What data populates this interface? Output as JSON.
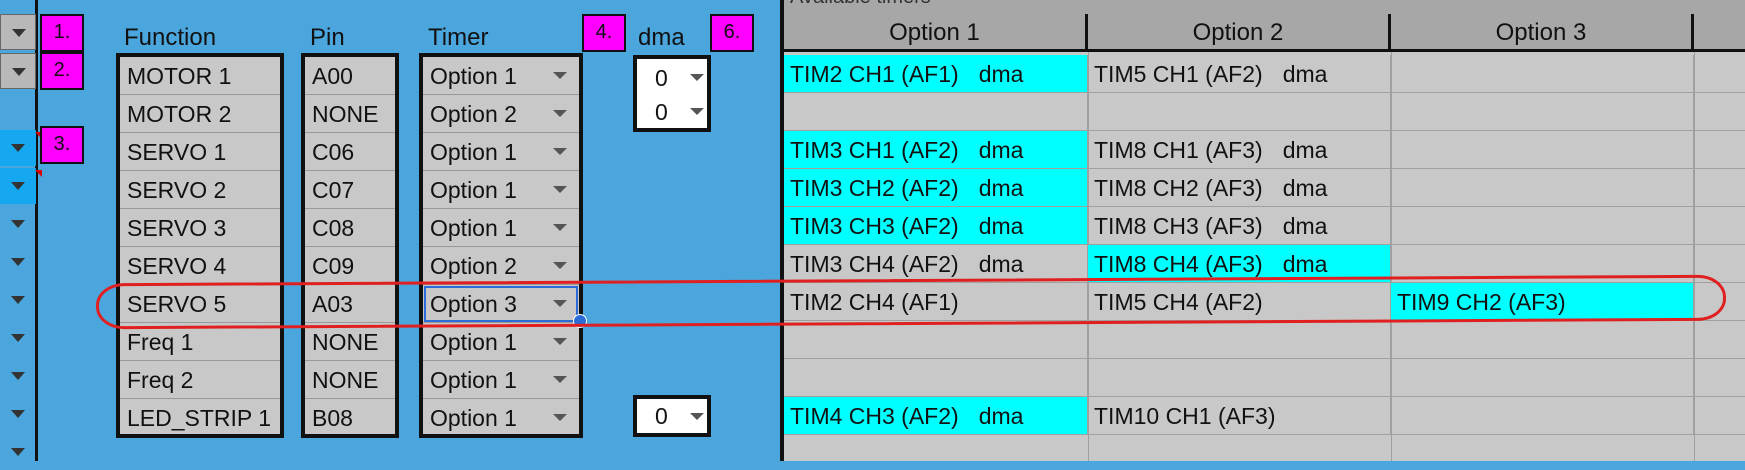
{
  "badges": [
    "1.",
    "2.",
    "3.",
    "4.",
    "6."
  ],
  "headers": {
    "function": "Function",
    "pin": "Pin",
    "timer": "Timer",
    "dma": "dma",
    "available_timers": "Available timers",
    "option1": "Option 1",
    "option2": "Option 2",
    "option3": "Option 3"
  },
  "rows": [
    {
      "function": "MOTOR 1",
      "pin": "A00",
      "timer": "Option 1",
      "dma": "0",
      "opt1": "TIM2 CH1 (AF1)",
      "opt1_dma": "dma",
      "opt1_hl": true,
      "opt2": "TIM5 CH1 (AF2)",
      "opt2_dma": "dma",
      "opt2_hl": false,
      "opt3": "",
      "opt3_hl": false
    },
    {
      "function": "MOTOR 2",
      "pin": "NONE",
      "timer": "Option 2",
      "dma": "0",
      "opt1": "",
      "opt1_dma": "",
      "opt1_hl": false,
      "opt2": "",
      "opt2_dma": "",
      "opt2_hl": false,
      "opt3": "",
      "opt3_hl": false
    },
    {
      "function": "SERVO 1",
      "pin": "C06",
      "timer": "Option 1",
      "dma": "",
      "opt1": "TIM3 CH1 (AF2)",
      "opt1_dma": "dma",
      "opt1_hl": true,
      "opt2": "TIM8 CH1 (AF3)",
      "opt2_dma": "dma",
      "opt2_hl": false,
      "opt3": "",
      "opt3_hl": false
    },
    {
      "function": "SERVO 2",
      "pin": "C07",
      "timer": "Option 1",
      "dma": "",
      "opt1": "TIM3 CH2 (AF2)",
      "opt1_dma": "dma",
      "opt1_hl": true,
      "opt2": "TIM8 CH2 (AF3)",
      "opt2_dma": "dma",
      "opt2_hl": false,
      "opt3": "",
      "opt3_hl": false
    },
    {
      "function": "SERVO 3",
      "pin": "C08",
      "timer": "Option 1",
      "dma": "",
      "opt1": "TIM3 CH3 (AF2)",
      "opt1_dma": "dma",
      "opt1_hl": true,
      "opt2": "TIM8 CH3 (AF3)",
      "opt2_dma": "dma",
      "opt2_hl": false,
      "opt3": "",
      "opt3_hl": false
    },
    {
      "function": "SERVO 4",
      "pin": "C09",
      "timer": "Option 2",
      "dma": "",
      "opt1": "TIM3 CH4 (AF2)",
      "opt1_dma": "dma",
      "opt1_hl": false,
      "opt2": "TIM8 CH4 (AF3)",
      "opt2_dma": "dma",
      "opt2_hl": true,
      "opt3": "",
      "opt3_hl": false
    },
    {
      "function": "SERVO 5",
      "pin": "A03",
      "timer": "Option 3",
      "dma": "",
      "opt1": "TIM2 CH4 (AF1)",
      "opt1_dma": "",
      "opt1_hl": false,
      "opt2": "TIM5 CH4 (AF2)",
      "opt2_dma": "",
      "opt2_hl": false,
      "opt3": "TIM9 CH2 (AF3)",
      "opt3_hl": true
    },
    {
      "function": "Freq 1",
      "pin": "NONE",
      "timer": "Option 1",
      "dma": "",
      "opt1": "",
      "opt1_dma": "",
      "opt1_hl": false,
      "opt2": "",
      "opt2_dma": "",
      "opt2_hl": false,
      "opt3": "",
      "opt3_hl": false
    },
    {
      "function": "Freq 2",
      "pin": "NONE",
      "timer": "Option 1",
      "dma": "",
      "opt1": "",
      "opt1_dma": "",
      "opt1_hl": false,
      "opt2": "",
      "opt2_dma": "",
      "opt2_hl": false,
      "opt3": "",
      "opt3_hl": false
    },
    {
      "function": "LED_STRIP 1",
      "pin": "B08",
      "timer": "Option 1",
      "dma": "0",
      "opt1": "TIM4 CH3 (AF2)",
      "opt1_dma": "dma",
      "opt1_hl": true,
      "opt2": "TIM10 CH1 (AF3)",
      "opt2_dma": "",
      "opt2_hl": false,
      "opt3": "",
      "opt3_hl": false
    }
  ],
  "colors": {
    "background": "#4aa6dd",
    "cell_grey": "#c8c8c8",
    "header_grey": "#a7a7a7",
    "highlight": "#00ffff",
    "badge": "#ff00ff",
    "annotation": "#e02020"
  }
}
